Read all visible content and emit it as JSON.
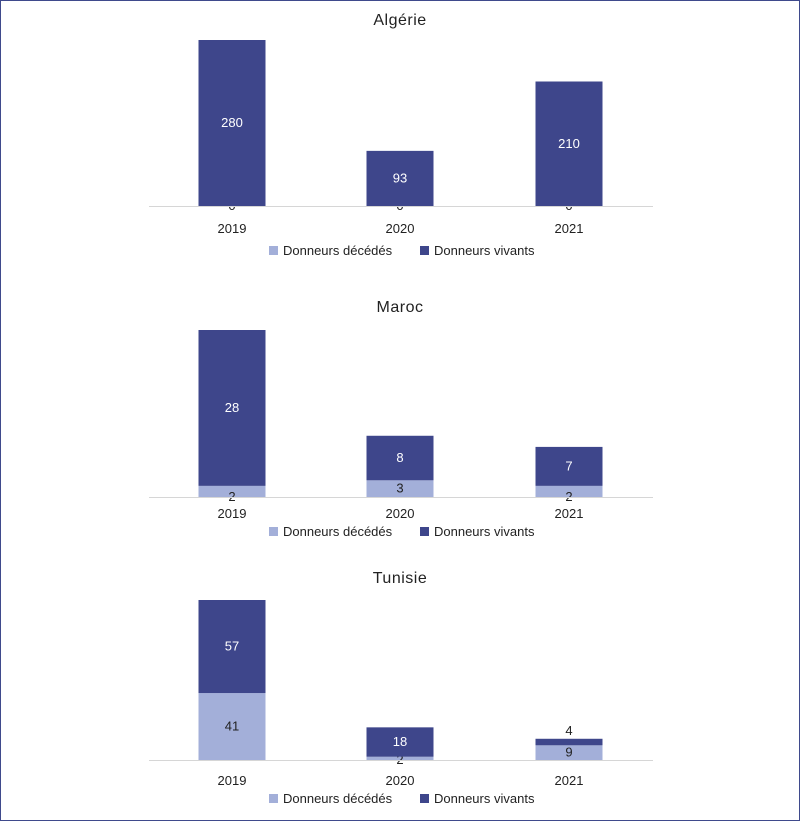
{
  "chart_data": [
    {
      "type": "bar",
      "stacked": true,
      "title": "Algérie",
      "categories": [
        "2019",
        "2020",
        "2021"
      ],
      "series": [
        {
          "name": "Donneurs décédés",
          "values": [
            0,
            0,
            0
          ],
          "color": "#a3afd9"
        },
        {
          "name": "Donneurs vivants",
          "values": [
            280,
            93,
            210
          ],
          "color": "#3e468b"
        }
      ],
      "legend": "bottom"
    },
    {
      "type": "bar",
      "stacked": true,
      "title": "Maroc",
      "categories": [
        "2019",
        "2020",
        "2021"
      ],
      "series": [
        {
          "name": "Donneurs décédés",
          "values": [
            2,
            3,
            2
          ],
          "color": "#a3afd9"
        },
        {
          "name": "Donneurs vivants",
          "values": [
            28,
            8,
            7
          ],
          "color": "#3e468b"
        }
      ],
      "legend": "bottom"
    },
    {
      "type": "bar",
      "stacked": true,
      "title": "Tunisie",
      "categories": [
        "2019",
        "2020",
        "2021"
      ],
      "series": [
        {
          "name": "Donneurs décédés",
          "values": [
            41,
            2,
            9
          ],
          "color": "#a3afd9"
        },
        {
          "name": "Donneurs vivants",
          "values": [
            57,
            18,
            4
          ],
          "color": "#3e468b"
        }
      ],
      "legend": "bottom"
    }
  ]
}
